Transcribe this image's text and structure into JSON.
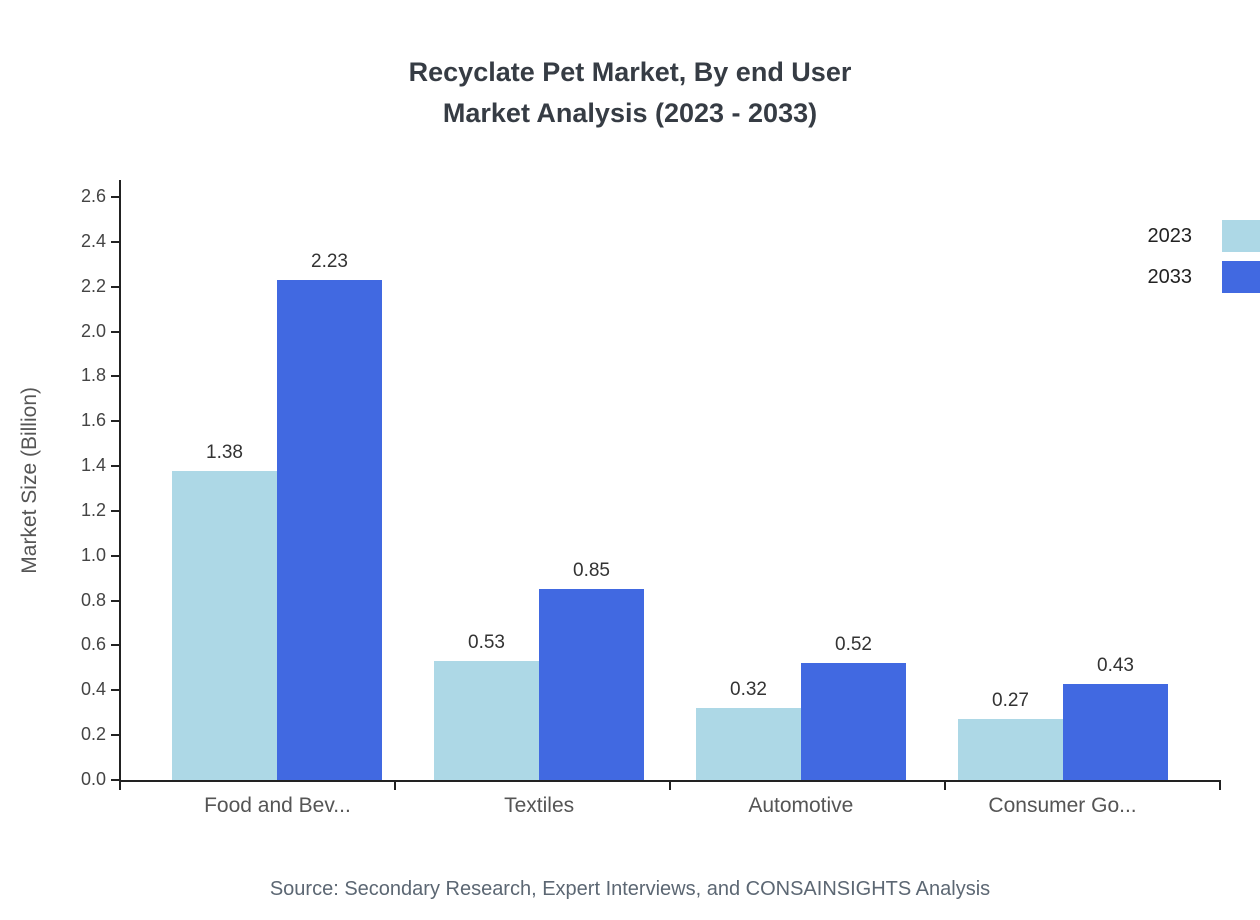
{
  "chart_data": {
    "type": "bar",
    "title": "Recyclate Pet Market, By end User",
    "subtitle": "Market Analysis (2023 - 2033)",
    "categories": [
      "Food and Bev...",
      "Textiles",
      "Automotive",
      "Consumer Go..."
    ],
    "series": [
      {
        "name": "2023",
        "color": "#add8e6",
        "values": [
          1.38,
          0.53,
          0.32,
          0.27
        ]
      },
      {
        "name": "2033",
        "color": "#4169e1",
        "values": [
          2.23,
          0.85,
          0.52,
          0.43
        ]
      }
    ],
    "ylabel": "Market Size (Billion)",
    "xlabel": "",
    "ylim": [
      0,
      2.6
    ],
    "ytick_step": 0.2,
    "grid": false,
    "legend_position": "top-right",
    "value_labels": true,
    "source": "Source: Secondary Research, Expert Interviews, and CONSAINSIGHTS Analysis"
  }
}
